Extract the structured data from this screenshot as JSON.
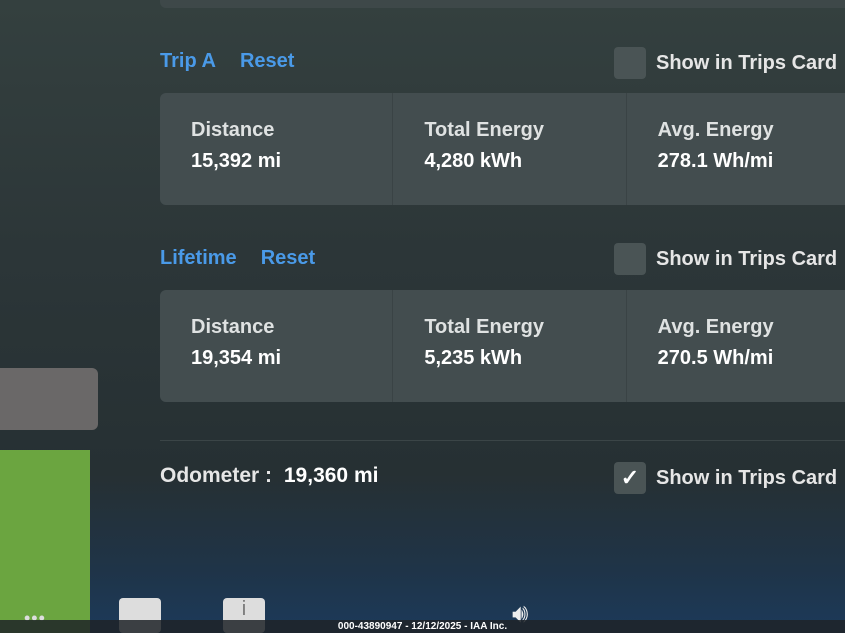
{
  "trip_a": {
    "title": "Trip A",
    "reset": "Reset",
    "show_in_trips_card": "Show in Trips Card",
    "checked": false,
    "distance_label": "Distance",
    "distance": "15,392 mi",
    "energy_label": "Total Energy",
    "energy": "4,280 kWh",
    "avg_label": "Avg. Energy",
    "avg": "278.1 Wh/mi"
  },
  "lifetime": {
    "title": "Lifetime",
    "reset": "Reset",
    "show_in_trips_card": "Show in Trips Card",
    "checked": false,
    "distance_label": "Distance",
    "distance": "19,354 mi",
    "energy_label": "Total Energy",
    "energy": "5,235 kWh",
    "avg_label": "Avg. Energy",
    "avg": "270.5 Wh/mi"
  },
  "odometer": {
    "label": "Odometer",
    "sep": ":",
    "value": "19,360 mi",
    "show_in_trips_card": "Show in Trips Card",
    "checked": true
  },
  "taskbar": {
    "more": "•••",
    "info": "i"
  },
  "watermark": "000-43890947 - 12/12/2025 - IAA Inc.",
  "colors": {
    "accent": "#4a9ae8"
  }
}
